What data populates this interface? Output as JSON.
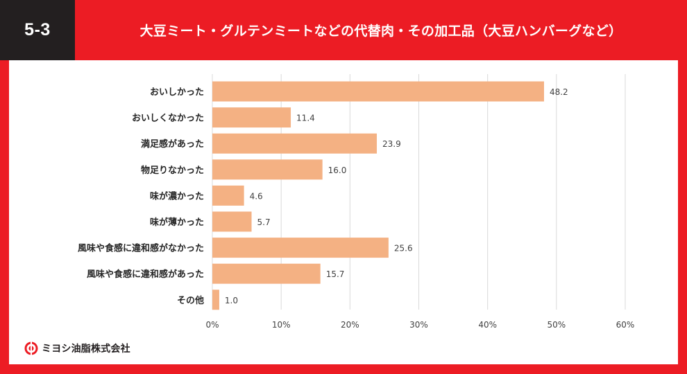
{
  "header": {
    "badge": "5-3",
    "title": "大豆ミート・グルテンミートなどの代替肉・その加工品（大豆ハンバーグなど）"
  },
  "brand": {
    "name": "ミヨシ油脂株式会社",
    "logo_icon": "miyoshi-logo-icon"
  },
  "colors": {
    "background": "#ec1c24",
    "badge": "#231f20",
    "bar": "#f4b183",
    "grid": "#d9d9d9"
  },
  "chart_data": {
    "type": "bar",
    "orientation": "horizontal",
    "title": "",
    "xlabel": "",
    "ylabel": "",
    "categories": [
      "おいしかった",
      "おいしくなかった",
      "満足感があった",
      "物足りなかった",
      "味が濃かった",
      "味が薄かった",
      "風味や食感に違和感がなかった",
      "風味や食感に違和感があった",
      "その他"
    ],
    "values": [
      48.2,
      11.4,
      23.9,
      16.0,
      4.6,
      5.7,
      25.6,
      15.7,
      1.0
    ],
    "value_labels": [
      "48.2",
      "11.4",
      "23.9",
      "16.0",
      "4.6",
      "5.7",
      "25.6",
      "15.7",
      "1.0"
    ],
    "xlim": [
      0,
      60
    ],
    "xticks": [
      0,
      10,
      20,
      30,
      40,
      50,
      60
    ],
    "xtick_labels": [
      "0%",
      "10%",
      "20%",
      "30%",
      "40%",
      "50%",
      "60%"
    ],
    "grid": true
  }
}
